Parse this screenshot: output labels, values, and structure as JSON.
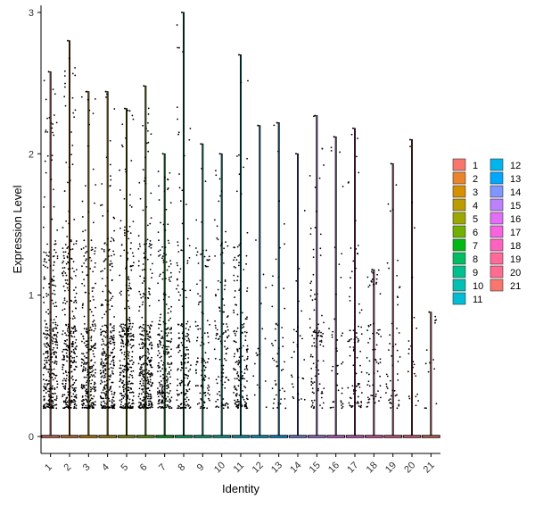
{
  "chart_data": {
    "type": "violin",
    "title": "",
    "xlabel": "Identity",
    "ylabel": "Expression Level",
    "ylim": [
      -0.12,
      3.05
    ],
    "y_ticks": [
      0,
      1,
      2,
      3
    ],
    "categories": [
      "1",
      "2",
      "3",
      "4",
      "5",
      "6",
      "7",
      "8",
      "9",
      "10",
      "11",
      "12",
      "13",
      "14",
      "15",
      "16",
      "17",
      "18",
      "19",
      "20",
      "21"
    ],
    "max_values": [
      2.58,
      2.8,
      2.44,
      2.44,
      2.32,
      2.48,
      2.0,
      3.0,
      2.07,
      2.0,
      2.7,
      2.2,
      2.22,
      2.0,
      2.27,
      2.12,
      2.18,
      1.18,
      1.93,
      2.1,
      0.88
    ],
    "point_density": [
      1.0,
      1.0,
      0.85,
      0.95,
      0.95,
      1.0,
      0.8,
      0.55,
      0.35,
      0.35,
      0.55,
      0.05,
      0.15,
      0.08,
      0.3,
      0.12,
      0.25,
      0.2,
      0.15,
      0.06,
      0.03
    ],
    "colors": [
      "#F8766D",
      "#E9842C",
      "#D69100",
      "#BC9D00",
      "#9CA700",
      "#6FB000",
      "#00B813",
      "#00BD61",
      "#00C08E",
      "#00C0B4",
      "#00BDD4",
      "#00B5EE",
      "#00A7FF",
      "#7F96FF",
      "#BC81FF",
      "#E26EF7",
      "#F863DF",
      "#FF62BF",
      "#FF6A9A",
      "#FF6C91",
      "#F8766D"
    ],
    "legend": {
      "placement": "right",
      "entries": [
        "1",
        "2",
        "3",
        "4",
        "5",
        "6",
        "7",
        "8",
        "9",
        "10",
        "11",
        "12",
        "13",
        "14",
        "15",
        "16",
        "17",
        "18",
        "19",
        "20",
        "21"
      ]
    },
    "grid": false
  }
}
